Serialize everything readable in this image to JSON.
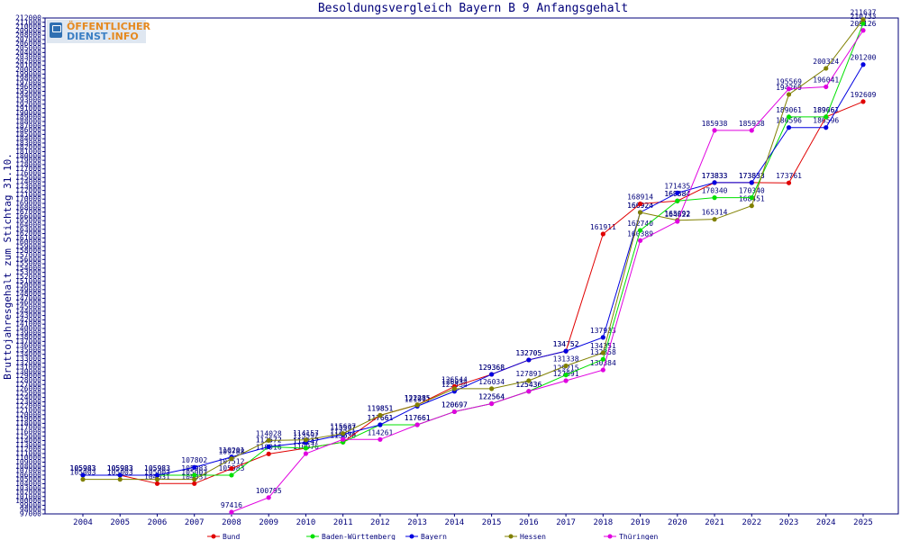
{
  "logo": {
    "line1": "ÖFFENTLICHER",
    "line2": "DIENST",
    "line2_suffix": ".INFO"
  },
  "chart_data": {
    "type": "line",
    "title": "Besoldungsvergleich Bayern B 9 Anfangsgehalt",
    "ylabel": "Bruttojahresgehalt zum Stichtag 31.10.",
    "xlabel": "",
    "ylim": [
      97000,
      212000
    ],
    "ytick_step": 1000,
    "categories": [
      "2004",
      "2005",
      "2006",
      "2007",
      "2008",
      "2009",
      "2010",
      "2011",
      "2012",
      "2013",
      "2014",
      "2015",
      "2016",
      "2017",
      "2018",
      "2019",
      "2020",
      "2021",
      "2022",
      "2023",
      "2024",
      "2025"
    ],
    "legend_position": "bottom",
    "grid": false,
    "colors": {
      "axis": "#00007a",
      "Bund": "#e00000",
      "Baden-Württemberg": "#00e000",
      "Bayern": "#0000e0",
      "Hessen": "#808000",
      "Thüringen": "#e000e0"
    },
    "series": [
      {
        "name": "Bund",
        "values": [
          105983,
          105983,
          104031,
          104031,
          107512,
          110916,
          112247,
          113630,
          119851,
          122285,
          126544,
          129368,
          132705,
          134752,
          161911,
          168914,
          169584,
          173833,
          173833,
          173761,
          189061,
          192609
        ]
      },
      {
        "name": "Baden-Württemberg",
        "values": [
          105983,
          105983,
          105983,
          105983,
          105983,
          112572,
          112247,
          113630,
          117661,
          117661,
          120697,
          122564,
          125436,
          129215,
          132858,
          162740,
          169584,
          170340,
          170340,
          189061,
          189061,
          210733
        ]
      },
      {
        "name": "Bayern",
        "values": [
          105983,
          105983,
          105983,
          107802,
          110201,
          112572,
          113592,
          115397,
          117661,
          121971,
          125434,
          129368,
          132705,
          134752,
          137933,
          166924,
          171435,
          173833,
          173833,
          186596,
          186596,
          201200
        ]
      },
      {
        "name": "Hessen",
        "values": [
          105003,
          105003,
          105003,
          105003,
          109788,
          114028,
          114157,
          115637,
          119851,
          122285,
          126034,
          126034,
          127891,
          131338,
          134351,
          166924,
          165092,
          165314,
          168451,
          194269,
          200324,
          211637
        ]
      },
      {
        "name": "Thüringen",
        "values": [
          null,
          null,
          null,
          null,
          97416,
          100795,
          110976,
          114261,
          114261,
          117661,
          120697,
          122564,
          125436,
          127891,
          130384,
          160389,
          164822,
          185938,
          185938,
          195569,
          196041,
          209126
        ]
      }
    ]
  }
}
